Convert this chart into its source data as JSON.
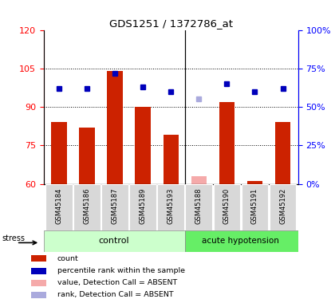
{
  "title": "GDS1251 / 1372786_at",
  "samples": [
    "GSM45184",
    "GSM45186",
    "GSM45187",
    "GSM45189",
    "GSM45193",
    "GSM45188",
    "GSM45190",
    "GSM45191",
    "GSM45192"
  ],
  "bar_values": [
    84,
    82,
    104,
    90,
    79,
    63,
    92,
    61,
    84
  ],
  "bar_absent": [
    false,
    false,
    false,
    false,
    false,
    true,
    false,
    false,
    false
  ],
  "rank_values_pct": [
    62,
    62,
    72,
    63,
    60,
    55,
    65,
    60,
    62
  ],
  "rank_absent": [
    false,
    false,
    false,
    false,
    false,
    true,
    false,
    false,
    false
  ],
  "bar_color_present": "#cc2200",
  "bar_color_absent": "#f5aaaa",
  "rank_color_present": "#0000bb",
  "rank_color_absent": "#aaaadd",
  "ylim_left": [
    60,
    120
  ],
  "ylim_right": [
    0,
    100
  ],
  "yticks_left": [
    60,
    75,
    90,
    105,
    120
  ],
  "yticks_right": [
    0,
    25,
    50,
    75,
    100
  ],
  "ytick_labels_right": [
    "0%",
    "25%",
    "50%",
    "75%",
    "100%"
  ],
  "hlines": [
    75,
    90,
    105
  ],
  "control_count": 5,
  "group_color_control": "#ccffcc",
  "group_color_acute": "#66ee66",
  "stress_label": "stress"
}
